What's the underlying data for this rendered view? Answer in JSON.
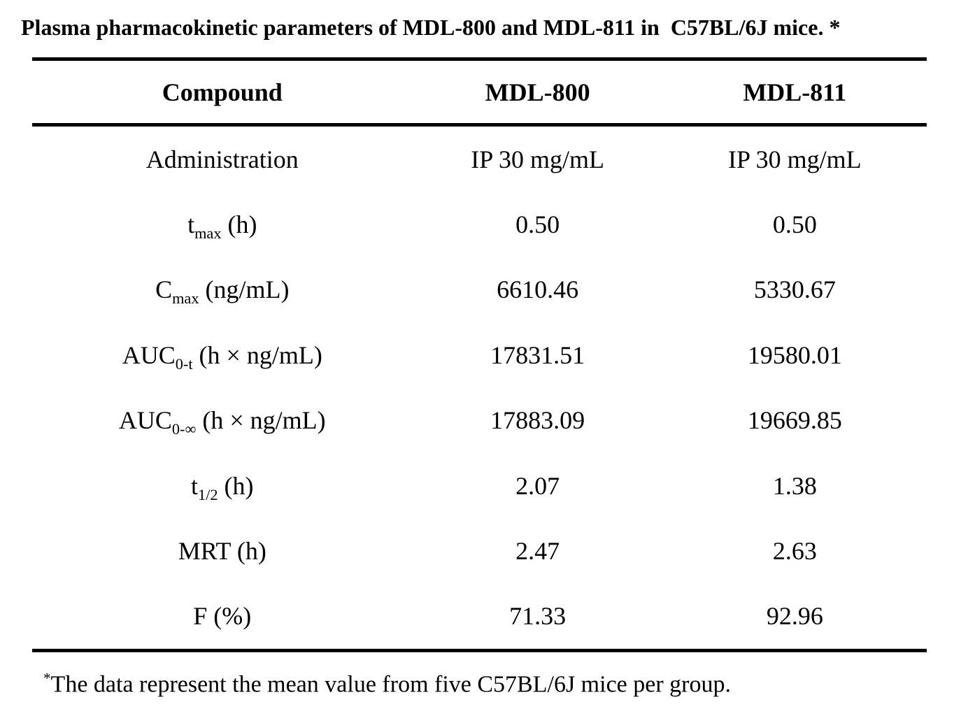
{
  "title": "Plasma pharmacokinetic parameters of MDL-800 and MDL-811 in  C57BL/6J mice. *",
  "table": {
    "headers": [
      "Compound",
      "MDL-800",
      "MDL-811"
    ],
    "rows": [
      {
        "label": {
          "pre": "Administration",
          "sub": "",
          "post": ""
        },
        "mdl800": "IP 30 mg/mL",
        "mdl811": "IP 30 mg/mL"
      },
      {
        "label": {
          "pre": "t",
          "sub": "max",
          "post": " (h)"
        },
        "mdl800": "0.50",
        "mdl811": "0.50"
      },
      {
        "label": {
          "pre": "C",
          "sub": "max",
          "post": " (ng/mL)"
        },
        "mdl800": "6610.46",
        "mdl811": "5330.67"
      },
      {
        "label": {
          "pre": "AUC",
          "sub": "0-t",
          "post": " (h × ng/mL)"
        },
        "mdl800": "17831.51",
        "mdl811": "19580.01"
      },
      {
        "label": {
          "pre": "AUC",
          "sub": "0-∞",
          "post": " (h × ng/mL)"
        },
        "mdl800": "17883.09",
        "mdl811": "19669.85"
      },
      {
        "label": {
          "pre": "t",
          "sub": "1/2",
          "post": " (h)"
        },
        "mdl800": "2.07",
        "mdl811": "1.38"
      },
      {
        "label": {
          "pre": "MRT (h)",
          "sub": "",
          "post": ""
        },
        "mdl800": "2.47",
        "mdl811": "2.63"
      },
      {
        "label": {
          "pre": "F (%)",
          "sub": "",
          "post": ""
        },
        "mdl800": "71.33",
        "mdl811": "92.96"
      }
    ]
  },
  "footnote": {
    "marker": "*",
    "text": "The data represent the mean value from five C57BL/6J mice per group."
  }
}
